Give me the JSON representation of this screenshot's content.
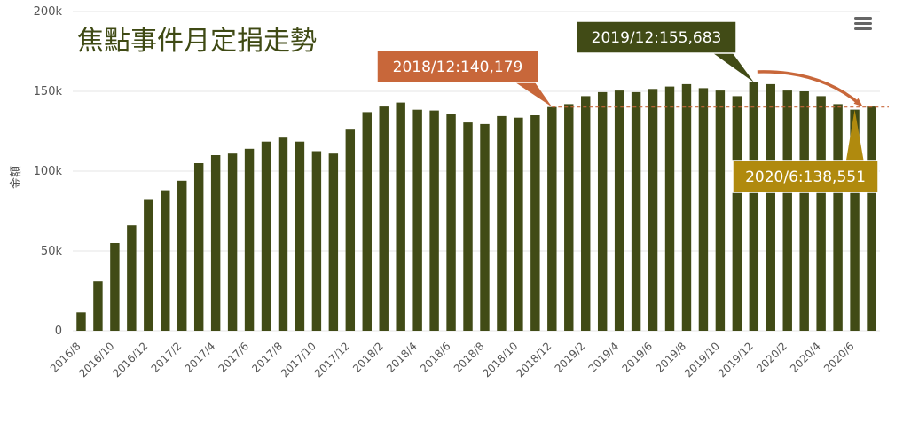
{
  "chart_data": {
    "type": "bar",
    "title": "焦點事件月定捐走勢",
    "ylabel": "金額",
    "xlabel": "",
    "ylim": [
      0,
      200000
    ],
    "y_ticks": [
      "0",
      "50k",
      "100k",
      "150k",
      "200k"
    ],
    "grid": true,
    "legend": "none",
    "bar_color": "#414b16",
    "categories": [
      "2016/8",
      "2016/9",
      "2016/10",
      "2016/11",
      "2016/12",
      "2017/1",
      "2017/2",
      "2017/3",
      "2017/4",
      "2017/5",
      "2017/6",
      "2017/7",
      "2017/8",
      "2017/9",
      "2017/10",
      "2017/11",
      "2017/12",
      "2018/1",
      "2018/2",
      "2018/3",
      "2018/4",
      "2018/5",
      "2018/6",
      "2018/7",
      "2018/8",
      "2018/9",
      "2018/10",
      "2018/11",
      "2018/12",
      "2019/1",
      "2019/2",
      "2019/3",
      "2019/4",
      "2019/5",
      "2019/6",
      "2019/7",
      "2019/8",
      "2019/9",
      "2019/10",
      "2019/11",
      "2019/12",
      "2020/1",
      "2020/2",
      "2020/3",
      "2020/4",
      "2020/5",
      "2020/6",
      "2020/7"
    ],
    "x_tick_labels": [
      "2016/8",
      "2016/10",
      "2016/12",
      "2017/2",
      "2017/4",
      "2017/6",
      "2017/8",
      "2017/10",
      "2017/12",
      "2018/2",
      "2018/4",
      "2018/6",
      "2018/8",
      "2018/10",
      "2018/12",
      "2019/2",
      "2019/4",
      "2019/6",
      "2019/8",
      "2019/10",
      "2019/12",
      "2020/2",
      "2020/4",
      "2020/6"
    ],
    "values": [
      11500,
      31000,
      55000,
      66000,
      82500,
      88000,
      94000,
      105000,
      110000,
      111000,
      114000,
      118500,
      121000,
      118500,
      112500,
      111000,
      126000,
      137000,
      140500,
      143000,
      138500,
      138000,
      136000,
      130500,
      129500,
      134500,
      133500,
      135000,
      140179,
      142000,
      147000,
      149500,
      150500,
      149500,
      151500,
      153000,
      154500,
      152000,
      150500,
      147000,
      155683,
      154500,
      150500,
      150000,
      147000,
      142000,
      138551,
      140500
    ],
    "annotations": [
      {
        "text": "2018/12:140,179",
        "category": "2018/12",
        "value": 140179,
        "color": "#c8673a",
        "kind": "callout"
      },
      {
        "text": "2019/12:155,683",
        "category": "2019/12",
        "value": 155683,
        "color": "#414b16",
        "kind": "callout"
      },
      {
        "text": "2020/6:138,551",
        "category": "2020/6",
        "value": 138551,
        "color": "#b08a0e",
        "kind": "callout"
      }
    ],
    "reference_line": {
      "value": 140179,
      "color": "#c8673a",
      "style": "dashed"
    },
    "trend_arrow": {
      "from": "2019/12",
      "to": "2020/6",
      "color": "#c8673a"
    }
  },
  "menu": {
    "icon": "hamburger-menu-icon"
  }
}
